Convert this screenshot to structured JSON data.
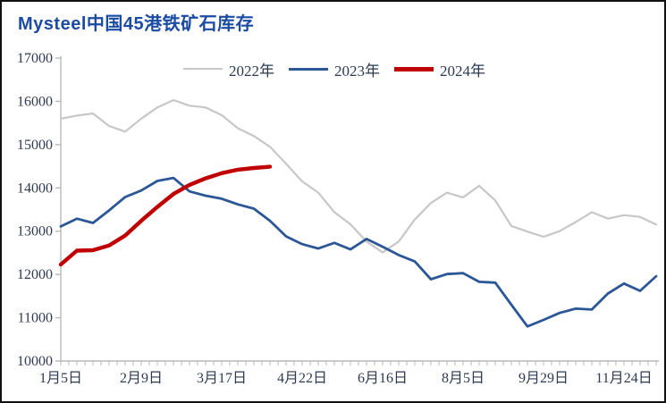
{
  "header": {
    "title": "Mysteel中国45港铁矿石库存",
    "title_color": "#1b4ba3"
  },
  "legend": {
    "position": "top",
    "items": [
      {
        "label": "2022年",
        "color": "#c7c7c7"
      },
      {
        "label": "2023年",
        "color": "#2b5797"
      },
      {
        "label": "2024年",
        "color": "#c00000"
      }
    ]
  },
  "axes": {
    "tick_color": "#b9b9b9",
    "axis_line_color": "#b9b9b9",
    "label_color": "#2e3a50"
  },
  "chart_data": {
    "type": "line",
    "title": "Mysteel中国45港铁矿石库存",
    "xlabel": "",
    "ylabel": "",
    "ylim": [
      10000,
      17000
    ],
    "y_tick_step": 1000,
    "y_tick_labels": [
      "10000",
      "11000",
      "12000",
      "13000",
      "14000",
      "15000",
      "16000",
      "17000"
    ],
    "x_tick_labels": [
      "1月5日",
      "2月9日",
      "3月17日",
      "4月22日",
      "6月16日",
      "8月5日",
      "9月29日",
      "11月24日"
    ],
    "x_label_every_n_points": 5,
    "grid": "off",
    "legend_position": "top-center",
    "series": [
      {
        "name": "2022年",
        "color": "#c7c7c7",
        "values": [
          15600,
          15670,
          15720,
          15430,
          15300,
          15600,
          15860,
          16030,
          15900,
          15860,
          15680,
          15380,
          15200,
          14950,
          14560,
          14150,
          13890,
          13440,
          13160,
          12760,
          12510,
          12760,
          13270,
          13650,
          13890,
          13780,
          14050,
          13710,
          13120,
          12990,
          12870,
          13000,
          13210,
          13440,
          13290,
          13370,
          13330,
          13150
        ]
      },
      {
        "name": "2023年",
        "color": "#2b5797",
        "values": [
          13110,
          13290,
          13190,
          13480,
          13790,
          13940,
          14160,
          14230,
          13920,
          13820,
          13750,
          13620,
          13520,
          13240,
          12880,
          12700,
          12600,
          12730,
          12580,
          12820,
          12640,
          12450,
          12300,
          11890,
          12010,
          12030,
          11830,
          11810,
          11300,
          10800,
          10950,
          11110,
          11210,
          11190,
          11560,
          11790,
          11620,
          11960
        ]
      },
      {
        "name": "2024年",
        "color": "#c00000",
        "values": [
          12230,
          12550,
          12560,
          12670,
          12900,
          13240,
          13560,
          13860,
          14070,
          14220,
          14340,
          14420,
          14460,
          14490
        ]
      }
    ]
  }
}
